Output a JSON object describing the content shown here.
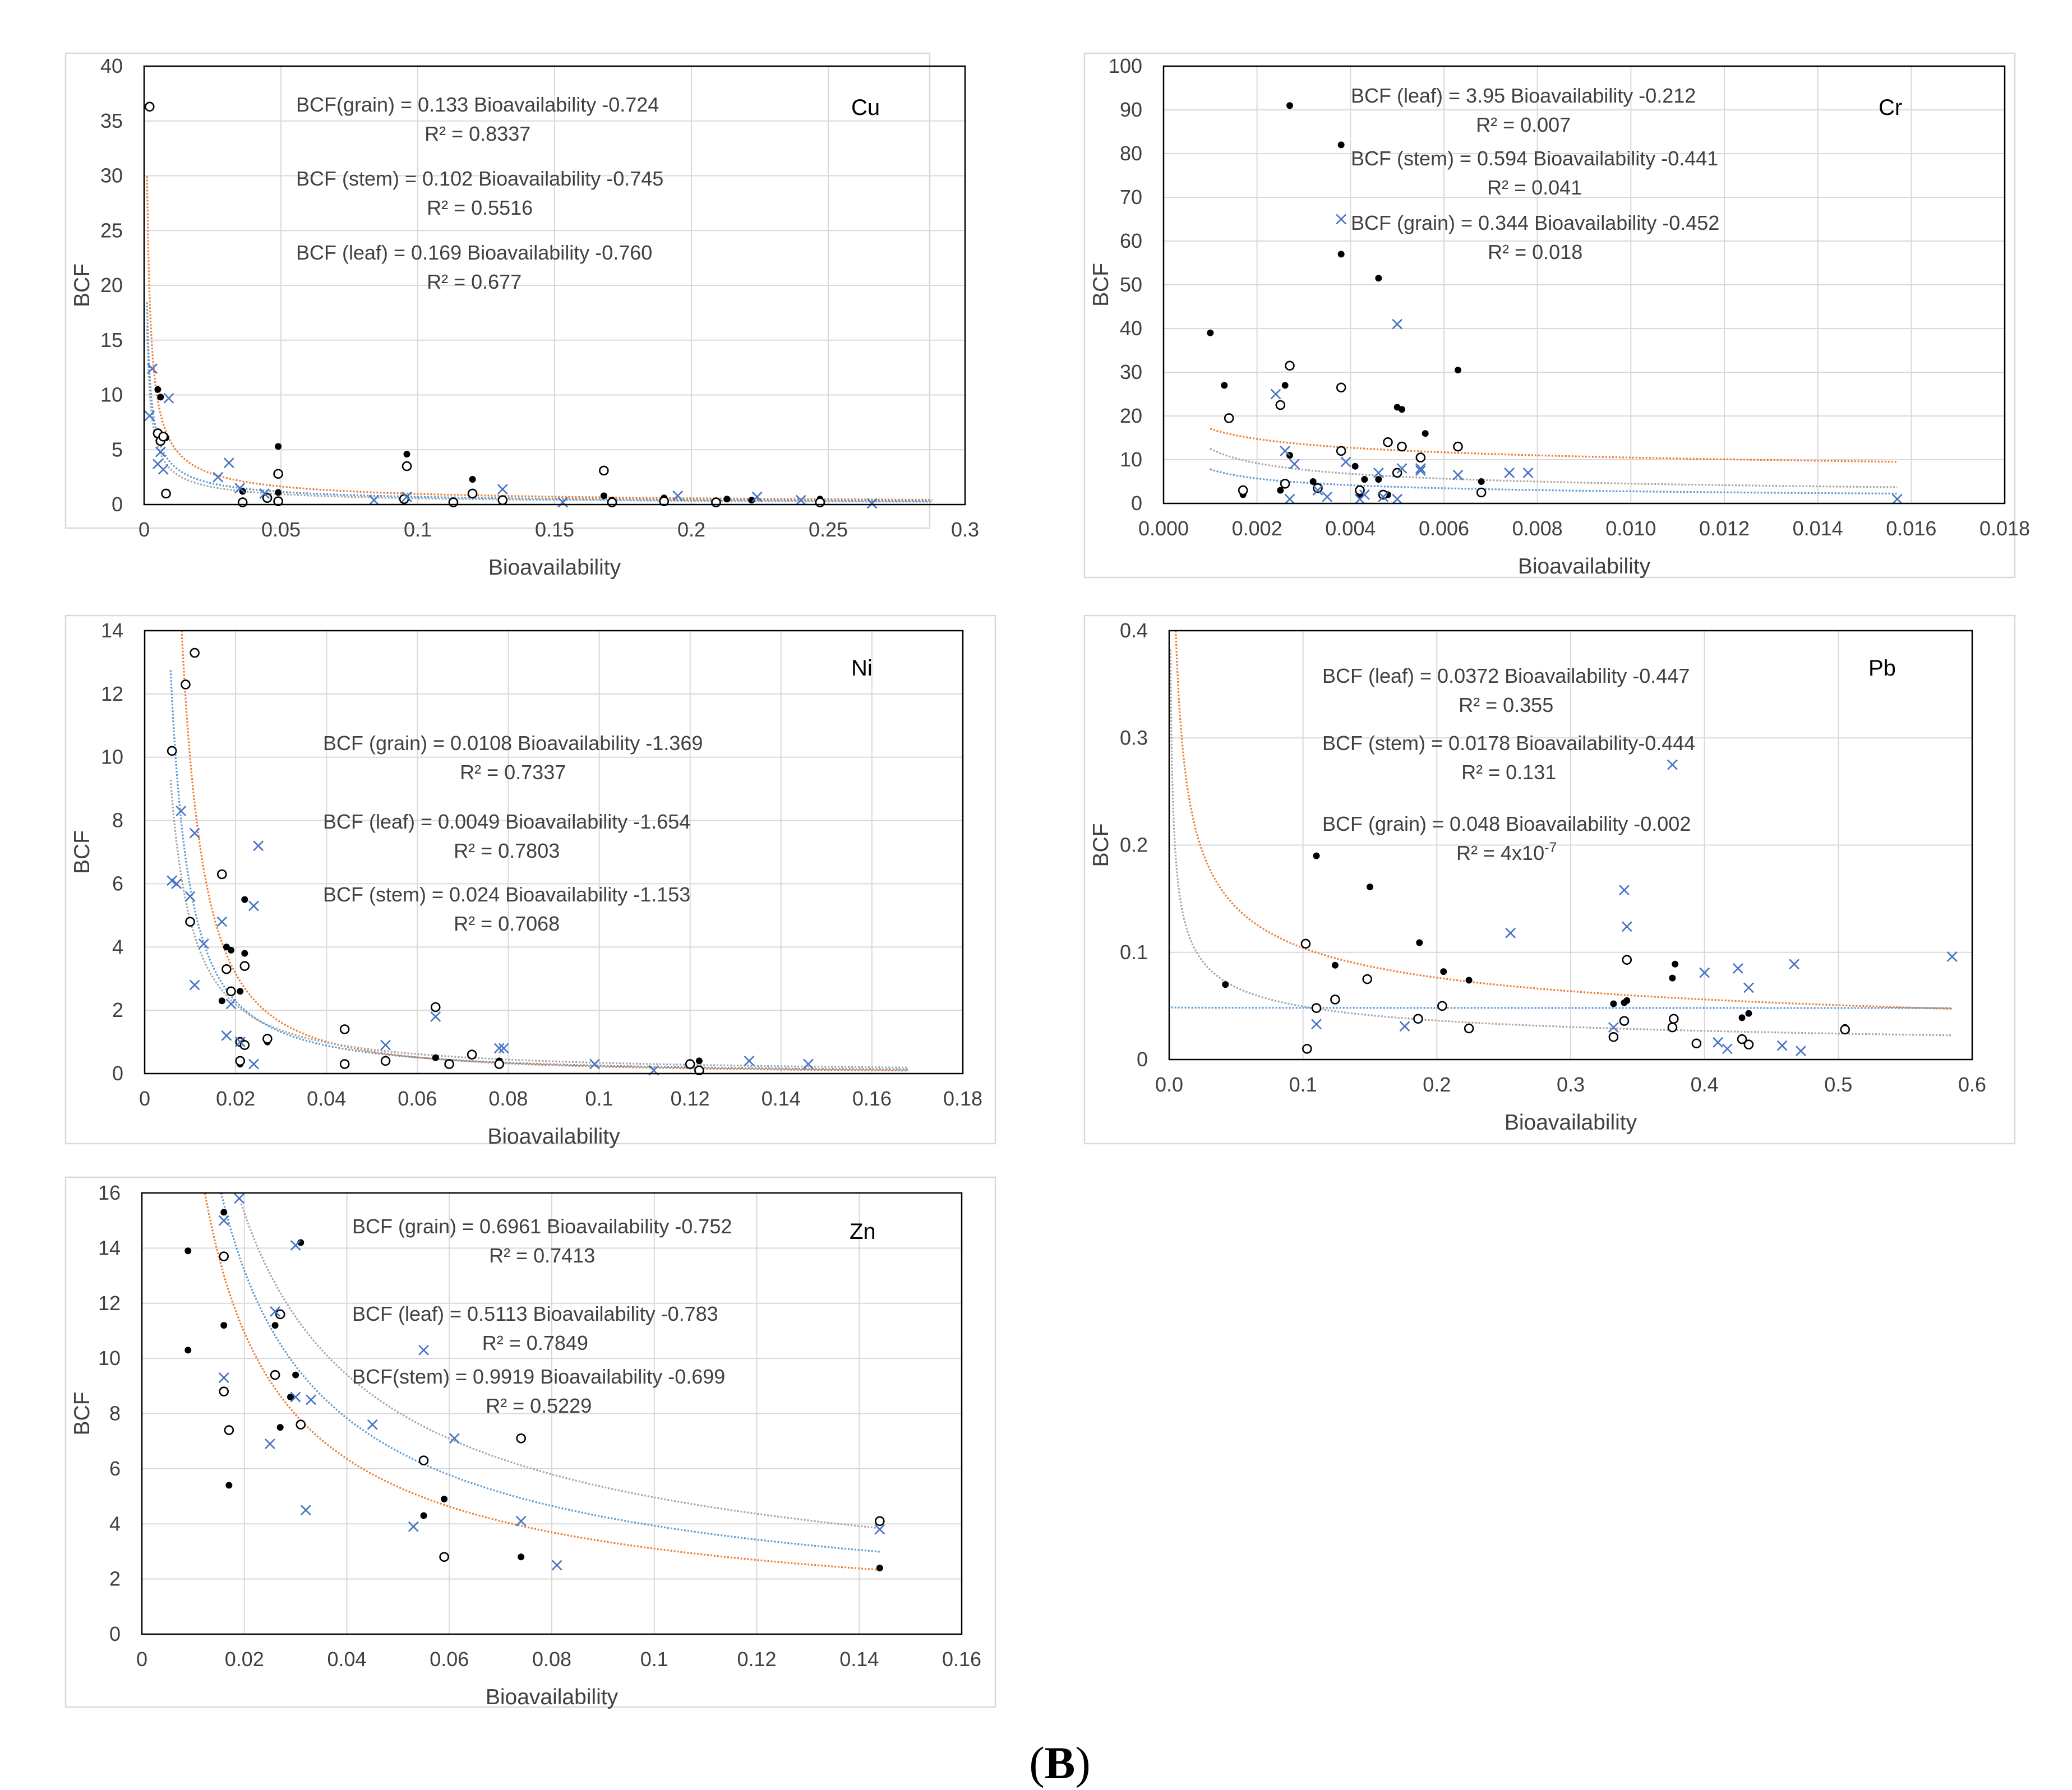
{
  "figure": {
    "caption_open": "(",
    "caption_letter": "B",
    "caption_close": ")"
  },
  "colors": {
    "leaf_curve": "#ed7d31",
    "stem_curve": "#a5a5a5",
    "grain_curve": "#5b9bd5",
    "marker_filled": "#000000",
    "marker_x": "#4472c4"
  },
  "legend_note": "filled dot = leaf, open circle = stem, blue x = grain",
  "chart_data": [
    {
      "id": "cu",
      "type": "scatter",
      "title": "Cu",
      "xlabel": "Bioavailability",
      "ylabel": "BCF",
      "xlim": [
        0,
        0.3
      ],
      "ylim": [
        0,
        40
      ],
      "xticks": [
        0,
        0.05,
        0.1,
        0.15,
        0.2,
        0.25,
        0.3
      ],
      "yticks": [
        0,
        5,
        10,
        15,
        20,
        25,
        30,
        35,
        40
      ],
      "xtick_labels": [
        "0",
        "0.05",
        "0.1",
        "0.15",
        "0.2",
        "0.25",
        "0.3"
      ],
      "ytick_labels": [
        "0",
        "5",
        "10",
        "15",
        "20",
        "25",
        "30",
        "35",
        "40"
      ],
      "equations": [
        {
          "text": "BCF(grain) = 0.133 Bioavailability -0.724",
          "r2": "R² = 0.8337"
        },
        {
          "text": "BCF (stem) = 0.102 Bioavailability -0.745",
          "r2": "R² = 0.5516"
        },
        {
          "text": "BCF (leaf) = 0.169 Bioavailability -0.760",
          "r2": "R² = 0.677"
        }
      ],
      "fits": [
        {
          "series": "leaf",
          "a": 0.169,
          "b": -0.76,
          "x_range": [
            0.0011,
            0.288
          ]
        },
        {
          "series": "stem",
          "a": 0.102,
          "b": -0.745,
          "x_range": [
            0.0011,
            0.288
          ]
        },
        {
          "series": "grain",
          "a": 0.133,
          "b": -0.724,
          "x_range": [
            0.0011,
            0.288
          ]
        }
      ],
      "series": [
        {
          "name": "leaf",
          "x": [
            0.005,
            0.006,
            0.008,
            0.036,
            0.045,
            0.049,
            0.049,
            0.095,
            0.096,
            0.113,
            0.12,
            0.131,
            0.168,
            0.171,
            0.19,
            0.213,
            0.222,
            0.247
          ],
          "y": [
            10.5,
            9.8,
            6.1,
            1.2,
            0.5,
            1.1,
            5.3,
            0.6,
            4.6,
            0.3,
            2.3,
            0.4,
            0.8,
            0.4,
            0.6,
            0.5,
            0.4,
            0.5
          ]
        },
        {
          "name": "stem",
          "x": [
            0.002,
            0.005,
            0.006,
            0.007,
            0.008,
            0.036,
            0.045,
            0.049,
            0.049,
            0.095,
            0.096,
            0.113,
            0.12,
            0.131,
            0.168,
            0.171,
            0.19,
            0.209,
            0.247
          ],
          "y": [
            36.3,
            6.5,
            5.8,
            6.2,
            1.0,
            0.2,
            0.6,
            0.3,
            2.8,
            0.5,
            3.5,
            0.2,
            1.0,
            0.4,
            3.1,
            0.2,
            0.3,
            0.2,
            0.2
          ]
        },
        {
          "name": "grain",
          "x": [
            0.002,
            0.003,
            0.005,
            0.006,
            0.007,
            0.009,
            0.027,
            0.031,
            0.035,
            0.044,
            0.084,
            0.096,
            0.131,
            0.153,
            0.195,
            0.224,
            0.24,
            0.266
          ],
          "y": [
            8.1,
            12.4,
            3.7,
            4.8,
            3.2,
            9.7,
            2.5,
            3.8,
            1.5,
            1.0,
            0.4,
            0.7,
            1.4,
            0.2,
            0.8,
            0.7,
            0.4,
            0.1
          ]
        }
      ]
    },
    {
      "id": "cr",
      "type": "scatter",
      "title": "Cr",
      "xlabel": "Bioavailability",
      "ylabel": "BCF",
      "xlim": [
        0,
        0.018
      ],
      "ylim": [
        0,
        100
      ],
      "xticks": [
        0,
        0.002,
        0.004,
        0.006,
        0.008,
        0.01,
        0.012,
        0.014,
        0.016,
        0.018
      ],
      "yticks": [
        0,
        10,
        20,
        30,
        40,
        50,
        60,
        70,
        80,
        90,
        100
      ],
      "xtick_labels": [
        "0.000",
        "0.002",
        "0.004",
        "0.006",
        "0.008",
        "0.010",
        "0.012",
        "0.014",
        "0.016",
        "0.018"
      ],
      "ytick_labels": [
        "0",
        "10",
        "20",
        "30",
        "40",
        "50",
        "60",
        "70",
        "80",
        "90",
        "100"
      ],
      "equations": [
        {
          "text": "BCF (leaf) = 3.95 Bioavailability -0.212",
          "r2": "R² = 0.007"
        },
        {
          "text": "BCF (stem) = 0.594 Bioavailability -0.441",
          "r2": "R² = 0.041"
        },
        {
          "text": "BCF (grain) = 0.344 Bioavailability -0.452",
          "r2": "R² = 0.018"
        }
      ],
      "fits": [
        {
          "series": "leaf",
          "a": 3.95,
          "b": -0.212,
          "x_range": [
            0.001,
            0.0157
          ]
        },
        {
          "series": "stem",
          "a": 0.594,
          "b": -0.441,
          "x_range": [
            0.001,
            0.0157
          ]
        },
        {
          "series": "grain",
          "a": 0.344,
          "b": -0.452,
          "x_range": [
            0.001,
            0.0157
          ]
        }
      ],
      "series": [
        {
          "name": "leaf",
          "x": [
            0.001,
            0.0013,
            0.0017,
            0.0025,
            0.0026,
            0.0027,
            0.0027,
            0.0032,
            0.0038,
            0.0038,
            0.0041,
            0.0042,
            0.0043,
            0.0046,
            0.0046,
            0.0048,
            0.005,
            0.0051,
            0.0056,
            0.0063,
            0.0068
          ],
          "y": [
            39,
            27,
            2,
            3,
            27,
            91,
            11,
            5,
            82,
            57,
            8.5,
            2,
            5.5,
            51.5,
            5.5,
            2,
            22,
            21.5,
            16,
            30.5,
            5
          ]
        },
        {
          "name": "stem",
          "x": [
            0.0014,
            0.0017,
            0.0025,
            0.0026,
            0.0027,
            0.0033,
            0.0038,
            0.0038,
            0.0042,
            0.0047,
            0.0048,
            0.005,
            0.0051,
            0.0055,
            0.0063,
            0.0068
          ],
          "y": [
            19.5,
            3,
            22.5,
            4.5,
            31.5,
            3.5,
            12,
            26.5,
            3,
            2,
            14,
            7,
            13,
            10.5,
            13,
            2.5
          ]
        },
        {
          "name": "grain",
          "x": [
            0.0024,
            0.0026,
            0.0027,
            0.0028,
            0.0033,
            0.0035,
            0.0038,
            0.0039,
            0.0042,
            0.0043,
            0.0046,
            0.0047,
            0.005,
            0.005,
            0.0051,
            0.0055,
            0.0055,
            0.0063,
            0.0074,
            0.0078,
            0.0157
          ],
          "y": [
            25,
            12,
            1,
            9,
            3,
            1.5,
            65,
            9.5,
            1,
            2,
            7,
            1.5,
            41,
            1,
            8,
            7.5,
            8,
            6.5,
            7,
            7,
            1
          ]
        }
      ]
    },
    {
      "id": "ni",
      "type": "scatter",
      "title": "Ni",
      "xlabel": "Bioavailability",
      "ylabel": "BCF",
      "xlim": [
        0,
        0.18
      ],
      "ylim": [
        0,
        14
      ],
      "xticks": [
        0,
        0.02,
        0.04,
        0.06,
        0.08,
        0.1,
        0.12,
        0.14,
        0.16,
        0.18
      ],
      "yticks": [
        0,
        2,
        4,
        6,
        8,
        10,
        12,
        14
      ],
      "xtick_labels": [
        "0",
        "0.02",
        "0.04",
        "0.06",
        "0.08",
        "0.1",
        "0.12",
        "0.14",
        "0.16",
        "0.18"
      ],
      "ytick_labels": [
        "0",
        "2",
        "4",
        "6",
        "8",
        "10",
        "12",
        "14"
      ],
      "equations": [
        {
          "text": "BCF (grain) = 0.0108 Bioavailability -1.369",
          "r2": "R² = 0.7337"
        },
        {
          "text": "BCF (leaf) = 0.0049 Bioavailability -1.654",
          "r2": "R² = 0.7803"
        },
        {
          "text": "BCF (stem) = 0.024 Bioavailability -1.153",
          "r2": "R² = 0.7068"
        }
      ],
      "fits": [
        {
          "series": "leaf",
          "a": 0.0049,
          "b": -1.654,
          "x_range": [
            0.0067,
            0.168
          ]
        },
        {
          "series": "stem",
          "a": 0.024,
          "b": -1.153,
          "x_range": [
            0.0057,
            0.168
          ]
        },
        {
          "series": "grain",
          "a": 0.0108,
          "b": -1.369,
          "x_range": [
            0.0057,
            0.168
          ]
        }
      ],
      "series": [
        {
          "name": "leaf",
          "x": [
            0.017,
            0.018,
            0.019,
            0.021,
            0.021,
            0.022,
            0.022,
            0.021,
            0.027,
            0.064,
            0.072,
            0.078,
            0.122
          ],
          "y": [
            2.3,
            4.0,
            3.9,
            0.3,
            2.6,
            3.8,
            5.5,
            1.0,
            1.0,
            0.5,
            0.6,
            0.4,
            0.4
          ]
        },
        {
          "name": "stem",
          "x": [
            0.006,
            0.009,
            0.01,
            0.011,
            0.017,
            0.018,
            0.019,
            0.021,
            0.021,
            0.022,
            0.022,
            0.027,
            0.044,
            0.044,
            0.053,
            0.064,
            0.067,
            0.072,
            0.078,
            0.12,
            0.122
          ],
          "y": [
            10.2,
            12.3,
            4.8,
            13.3,
            6.3,
            3.3,
            2.6,
            0.4,
            1.0,
            0.9,
            3.4,
            1.1,
            1.4,
            0.3,
            0.4,
            2.1,
            0.3,
            0.6,
            0.3,
            0.3,
            0.1
          ]
        },
        {
          "name": "grain",
          "x": [
            0.006,
            0.007,
            0.008,
            0.01,
            0.011,
            0.011,
            0.013,
            0.017,
            0.018,
            0.019,
            0.021,
            0.024,
            0.024,
            0.025,
            0.053,
            0.064,
            0.078,
            0.079,
            0.099,
            0.112,
            0.133,
            0.146
          ],
          "y": [
            6.1,
            6.0,
            8.3,
            5.6,
            7.6,
            2.8,
            4.1,
            4.8,
            1.2,
            2.2,
            1.0,
            5.3,
            0.3,
            7.2,
            0.9,
            1.8,
            0.8,
            0.8,
            0.3,
            0.1,
            0.4,
            0.3
          ]
        }
      ]
    },
    {
      "id": "pb",
      "type": "scatter",
      "title": "Pb",
      "xlabel": "Bioavailability",
      "ylabel": "BCF",
      "xlim": [
        0,
        0.6
      ],
      "ylim": [
        0,
        0.4
      ],
      "xticks": [
        0,
        0.1,
        0.2,
        0.3,
        0.4,
        0.5,
        0.6
      ],
      "yticks": [
        0,
        0.1,
        0.2,
        0.3,
        0.4
      ],
      "xtick_labels": [
        "0.0",
        "0.1",
        "0.2",
        "0.3",
        "0.4",
        "0.5",
        "0.6"
      ],
      "ytick_labels": [
        "0",
        "0.1",
        "0.2",
        "0.3",
        "0.4"
      ],
      "equations": [
        {
          "text": "BCF (leaf) = 0.0372 Bioavailability -0.447",
          "r2": "R² = 0.355"
        },
        {
          "text": "BCF (stem) = 0.0178 Bioavailability-0.444",
          "r2": "R² = 0.131"
        },
        {
          "text": "BCF (grain) = 0.048 Bioavailability -0.002",
          "r2": "R² = 4x10",
          "r2_exp": "-7"
        }
      ],
      "fits": [
        {
          "series": "leaf",
          "a": 0.0372,
          "b": -0.447,
          "x_range": [
            0.0033,
            0.585
          ]
        },
        {
          "series": "stem",
          "a": 0.0178,
          "b": -0.444,
          "x_range": [
            0.001,
            0.585
          ]
        },
        {
          "series": "grain",
          "a": 0.048,
          "b": -0.002,
          "x_range": [
            0.0,
            0.585
          ]
        }
      ],
      "series": [
        {
          "name": "leaf",
          "x": [
            0.042,
            0.11,
            0.124,
            0.15,
            0.187,
            0.205,
            0.224,
            0.332,
            0.34,
            0.342,
            0.376,
            0.378,
            0.428,
            0.433,
            0.505
          ],
          "y": [
            0.07,
            0.19,
            0.088,
            0.161,
            0.109,
            0.082,
            0.074,
            0.052,
            0.053,
            0.055,
            0.076,
            0.089,
            0.039,
            0.043,
            0.03
          ]
        },
        {
          "name": "stem",
          "x": [
            0.102,
            0.103,
            0.11,
            0.124,
            0.148,
            0.186,
            0.204,
            0.224,
            0.332,
            0.34,
            0.342,
            0.376,
            0.377,
            0.394,
            0.428,
            0.433,
            0.505
          ],
          "y": [
            0.108,
            0.01,
            0.048,
            0.056,
            0.075,
            0.038,
            0.05,
            0.029,
            0.021,
            0.036,
            0.093,
            0.03,
            0.038,
            0.015,
            0.019,
            0.014,
            0.028
          ]
        },
        {
          "name": "grain",
          "x": [
            0.11,
            0.176,
            0.255,
            0.332,
            0.34,
            0.342,
            0.376,
            0.4,
            0.41,
            0.417,
            0.425,
            0.433,
            0.458,
            0.467,
            0.472,
            0.585
          ],
          "y": [
            0.033,
            0.031,
            0.118,
            0.03,
            0.158,
            0.124,
            0.275,
            0.081,
            0.016,
            0.01,
            0.085,
            0.067,
            0.013,
            0.089,
            0.008,
            0.096
          ]
        }
      ]
    },
    {
      "id": "zn",
      "type": "scatter",
      "title": "Zn",
      "xlabel": "Bioavailability",
      "ylabel": "BCF",
      "xlim": [
        0,
        0.16
      ],
      "ylim": [
        0,
        16
      ],
      "xticks": [
        0,
        0.02,
        0.04,
        0.06,
        0.08,
        0.1,
        0.12,
        0.14,
        0.16
      ],
      "yticks": [
        0,
        2,
        4,
        6,
        8,
        10,
        12,
        14,
        16
      ],
      "xtick_labels": [
        "0",
        "0.02",
        "0.04",
        "0.06",
        "0.08",
        "0.1",
        "0.12",
        "0.14",
        "0.16"
      ],
      "ytick_labels": [
        "0",
        "2",
        "4",
        "6",
        "8",
        "10",
        "12",
        "14",
        "16"
      ],
      "equations": [
        {
          "text": "BCF (grain) = 0.6961 Bioavailability -0.752",
          "r2": "R² = 0.7413"
        },
        {
          "text": "BCF (leaf) = 0.5113 Bioavailability -0.783",
          "r2": "R² = 0.7849"
        },
        {
          "text": "BCF(stem) = 0.9919 Bioavailability -0.699",
          "r2": "R² = 0.5229"
        }
      ],
      "fits": [
        {
          "series": "leaf",
          "a": 0.5113,
          "b": -0.783,
          "x_range": [
            0.0122,
            0.144
          ]
        },
        {
          "series": "stem",
          "a": 0.9919,
          "b": -0.699,
          "x_range": [
            0.0194,
            0.144
          ]
        },
        {
          "series": "grain",
          "a": 0.6961,
          "b": -0.752,
          "x_range": [
            0.0146,
            0.144
          ]
        }
      ],
      "series": [
        {
          "name": "leaf",
          "x": [
            0.009,
            0.009,
            0.016,
            0.016,
            0.017,
            0.026,
            0.027,
            0.029,
            0.03,
            0.031,
            0.055,
            0.059,
            0.074,
            0.144
          ],
          "y": [
            13.9,
            10.3,
            15.3,
            11.2,
            5.4,
            11.2,
            7.5,
            8.6,
            9.4,
            14.2,
            4.3,
            4.9,
            2.8,
            2.4
          ]
        },
        {
          "name": "stem",
          "x": [
            0.016,
            0.016,
            0.017,
            0.026,
            0.027,
            0.031,
            0.055,
            0.059,
            0.074,
            0.144
          ],
          "y": [
            13.7,
            8.8,
            7.4,
            9.4,
            11.6,
            7.6,
            6.3,
            2.8,
            7.1,
            4.1
          ]
        },
        {
          "name": "grain",
          "x": [
            0.016,
            0.016,
            0.019,
            0.025,
            0.026,
            0.03,
            0.03,
            0.032,
            0.033,
            0.045,
            0.053,
            0.055,
            0.061,
            0.074,
            0.081,
            0.144
          ],
          "y": [
            15.0,
            9.3,
            15.8,
            6.9,
            11.7,
            14.1,
            8.6,
            4.5,
            8.5,
            7.6,
            3.9,
            10.3,
            7.1,
            4.1,
            2.5,
            3.8
          ]
        }
      ]
    }
  ]
}
